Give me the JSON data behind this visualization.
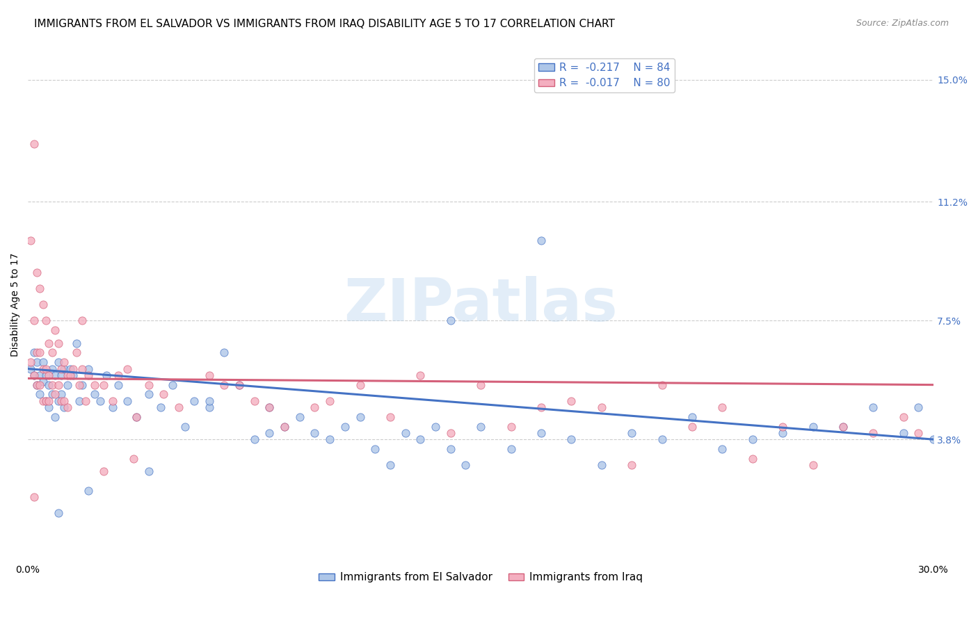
{
  "title": "IMMIGRANTS FROM EL SALVADOR VS IMMIGRANTS FROM IRAQ DISABILITY AGE 5 TO 17 CORRELATION CHART",
  "source": "Source: ZipAtlas.com",
  "ylabel": "Disability Age 5 to 17",
  "xlim": [
    0.0,
    0.3
  ],
  "ylim": [
    0.0,
    0.16
  ],
  "x_tick_labels": [
    "0.0%",
    "30.0%"
  ],
  "y_tick_labels_right": [
    "3.8%",
    "7.5%",
    "11.2%",
    "15.0%"
  ],
  "y_tick_vals_right": [
    0.038,
    0.075,
    0.112,
    0.15
  ],
  "color_salvador": "#aec6e8",
  "color_iraq": "#f4afc0",
  "line_color_salvador": "#4472c4",
  "line_color_iraq": "#d4607a",
  "R_salvador": -0.217,
  "N_salvador": 84,
  "R_iraq": -0.017,
  "N_iraq": 80,
  "legend_label_salvador": "Immigrants from El Salvador",
  "legend_label_iraq": "Immigrants from Iraq",
  "watermark": "ZIPatlas",
  "title_fontsize": 11,
  "label_fontsize": 10,
  "tick_fontsize": 10,
  "salvador_x": [
    0.001,
    0.002,
    0.002,
    0.003,
    0.003,
    0.004,
    0.004,
    0.005,
    0.005,
    0.006,
    0.006,
    0.007,
    0.007,
    0.008,
    0.008,
    0.009,
    0.009,
    0.01,
    0.01,
    0.011,
    0.011,
    0.012,
    0.012,
    0.013,
    0.014,
    0.015,
    0.016,
    0.017,
    0.018,
    0.02,
    0.022,
    0.024,
    0.026,
    0.028,
    0.03,
    0.033,
    0.036,
    0.04,
    0.044,
    0.048,
    0.052,
    0.055,
    0.06,
    0.065,
    0.07,
    0.075,
    0.08,
    0.085,
    0.09,
    0.095,
    0.1,
    0.105,
    0.11,
    0.115,
    0.12,
    0.125,
    0.13,
    0.135,
    0.14,
    0.145,
    0.15,
    0.16,
    0.17,
    0.18,
    0.19,
    0.2,
    0.21,
    0.22,
    0.23,
    0.24,
    0.25,
    0.26,
    0.27,
    0.28,
    0.29,
    0.295,
    0.3,
    0.17,
    0.14,
    0.08,
    0.06,
    0.04,
    0.02,
    0.01
  ],
  "salvador_y": [
    0.06,
    0.058,
    0.065,
    0.062,
    0.055,
    0.058,
    0.052,
    0.062,
    0.056,
    0.058,
    0.05,
    0.055,
    0.048,
    0.06,
    0.052,
    0.058,
    0.045,
    0.062,
    0.05,
    0.058,
    0.052,
    0.06,
    0.048,
    0.055,
    0.06,
    0.058,
    0.068,
    0.05,
    0.055,
    0.06,
    0.052,
    0.05,
    0.058,
    0.048,
    0.055,
    0.05,
    0.045,
    0.052,
    0.048,
    0.055,
    0.042,
    0.05,
    0.048,
    0.065,
    0.055,
    0.038,
    0.048,
    0.042,
    0.045,
    0.04,
    0.038,
    0.042,
    0.045,
    0.035,
    0.03,
    0.04,
    0.038,
    0.042,
    0.035,
    0.03,
    0.042,
    0.035,
    0.04,
    0.038,
    0.03,
    0.04,
    0.038,
    0.045,
    0.035,
    0.038,
    0.04,
    0.042,
    0.042,
    0.048,
    0.04,
    0.048,
    0.038,
    0.1,
    0.075,
    0.04,
    0.05,
    0.028,
    0.022,
    0.015
  ],
  "iraq_x": [
    0.001,
    0.001,
    0.002,
    0.002,
    0.002,
    0.003,
    0.003,
    0.003,
    0.004,
    0.004,
    0.004,
    0.005,
    0.005,
    0.005,
    0.006,
    0.006,
    0.006,
    0.007,
    0.007,
    0.007,
    0.008,
    0.008,
    0.009,
    0.009,
    0.01,
    0.01,
    0.011,
    0.011,
    0.012,
    0.012,
    0.013,
    0.013,
    0.014,
    0.015,
    0.016,
    0.017,
    0.018,
    0.019,
    0.02,
    0.022,
    0.025,
    0.028,
    0.03,
    0.033,
    0.036,
    0.04,
    0.045,
    0.05,
    0.06,
    0.065,
    0.07,
    0.075,
    0.08,
    0.085,
    0.095,
    0.1,
    0.11,
    0.12,
    0.13,
    0.14,
    0.15,
    0.16,
    0.17,
    0.18,
    0.19,
    0.2,
    0.21,
    0.22,
    0.23,
    0.24,
    0.25,
    0.26,
    0.27,
    0.28,
    0.29,
    0.295,
    0.018,
    0.025,
    0.035,
    0.002
  ],
  "iraq_y": [
    0.062,
    0.1,
    0.058,
    0.13,
    0.075,
    0.065,
    0.09,
    0.055,
    0.085,
    0.065,
    0.055,
    0.06,
    0.08,
    0.05,
    0.075,
    0.06,
    0.05,
    0.068,
    0.058,
    0.05,
    0.065,
    0.055,
    0.072,
    0.052,
    0.068,
    0.055,
    0.06,
    0.05,
    0.062,
    0.05,
    0.058,
    0.048,
    0.058,
    0.06,
    0.065,
    0.055,
    0.06,
    0.05,
    0.058,
    0.055,
    0.055,
    0.05,
    0.058,
    0.06,
    0.045,
    0.055,
    0.052,
    0.048,
    0.058,
    0.055,
    0.055,
    0.05,
    0.048,
    0.042,
    0.048,
    0.05,
    0.055,
    0.045,
    0.058,
    0.04,
    0.055,
    0.042,
    0.048,
    0.05,
    0.048,
    0.03,
    0.055,
    0.042,
    0.048,
    0.032,
    0.042,
    0.03,
    0.042,
    0.04,
    0.045,
    0.04,
    0.075,
    0.028,
    0.032,
    0.02
  ]
}
